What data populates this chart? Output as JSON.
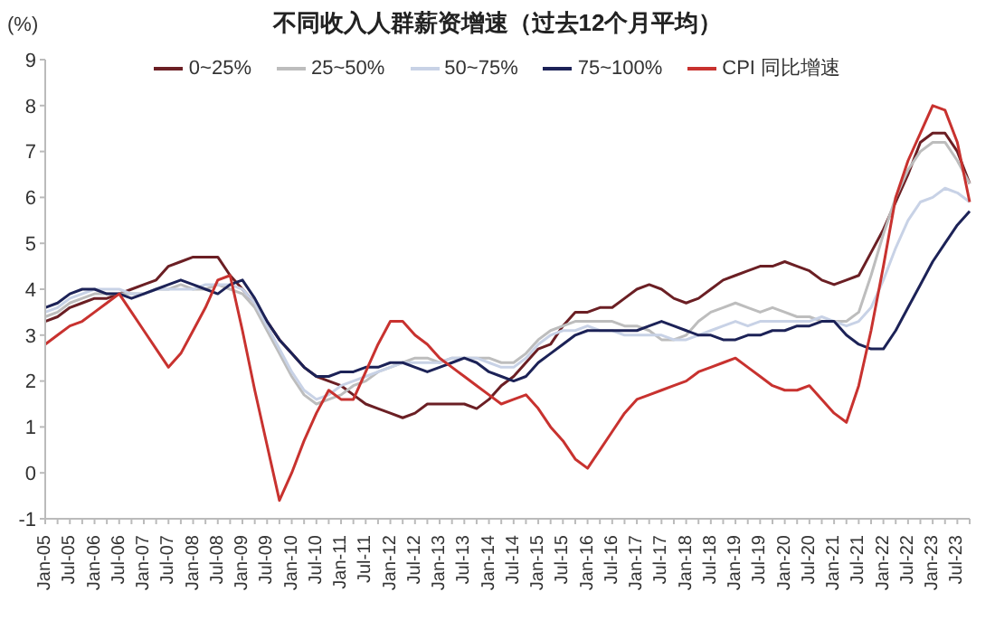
{
  "chart_data": {
    "type": "line",
    "title": "不同收入人群薪资增速（过去12个月平均）",
    "ylabel": "(%)",
    "categories": [
      "Jan-05",
      null,
      "Jul-05",
      null,
      "Jan-06",
      null,
      "Jul-06",
      null,
      "Jan-07",
      null,
      "Jul-07",
      null,
      "Jan-08",
      null,
      "Jul-08",
      null,
      "Jan-09",
      null,
      "Jul-09",
      null,
      "Jan-10",
      null,
      "Jul-10",
      null,
      "Jan-11",
      null,
      "Jul-11",
      null,
      "Jan-12",
      null,
      "Jul-12",
      null,
      "Jan-13",
      null,
      "Jul-13",
      null,
      "Jan-14",
      null,
      "Jul-14",
      null,
      "Jan-15",
      null,
      "Jul-15",
      null,
      "Jan-16",
      null,
      "Jul-16",
      null,
      "Jan-17",
      null,
      "Jul-17",
      null,
      "Jan-18",
      null,
      "Jul-18",
      null,
      "Jan-19",
      null,
      "Jul-19",
      null,
      "Jan-20",
      null,
      "Jul-20",
      null,
      "Jan-21",
      null,
      "Jul-21",
      null,
      "Jan-22",
      null,
      "Jul-22",
      null,
      "Jan-23",
      null,
      "Jul-23",
      null
    ],
    "series": [
      {
        "name": "0~25%",
        "color": "#6b1f24",
        "values": [
          3.3,
          3.4,
          3.6,
          3.7,
          3.8,
          3.8,
          3.9,
          4.0,
          4.1,
          4.2,
          4.5,
          4.6,
          4.7,
          4.7,
          4.7,
          4.3,
          4.0,
          3.7,
          3.3,
          2.9,
          2.6,
          2.3,
          2.1,
          2.0,
          1.9,
          1.7,
          1.5,
          1.4,
          1.3,
          1.2,
          1.3,
          1.5,
          1.5,
          1.5,
          1.5,
          1.4,
          1.6,
          1.9,
          2.1,
          2.4,
          2.7,
          2.8,
          3.2,
          3.5,
          3.5,
          3.6,
          3.6,
          3.8,
          4.0,
          4.1,
          4.0,
          3.8,
          3.7,
          3.8,
          4.0,
          4.2,
          4.3,
          4.4,
          4.5,
          4.5,
          4.6,
          4.5,
          4.4,
          4.2,
          4.1,
          4.2,
          4.3,
          4.8,
          5.3,
          5.9,
          6.5,
          7.2,
          7.4,
          7.4,
          7.0,
          6.3
        ]
      },
      {
        "name": "25~50%",
        "color": "#bdbdbd",
        "values": [
          3.4,
          3.5,
          3.7,
          3.8,
          3.9,
          3.9,
          3.9,
          3.9,
          3.9,
          4.0,
          4.0,
          4.1,
          4.0,
          4.0,
          4.1,
          4.0,
          3.9,
          3.6,
          3.1,
          2.6,
          2.1,
          1.7,
          1.5,
          1.6,
          1.7,
          1.9,
          2.0,
          2.2,
          2.3,
          2.4,
          2.5,
          2.5,
          2.4,
          2.5,
          2.5,
          2.5,
          2.5,
          2.4,
          2.4,
          2.6,
          2.9,
          3.1,
          3.2,
          3.3,
          3.3,
          3.3,
          3.3,
          3.2,
          3.2,
          3.1,
          2.9,
          2.9,
          3.0,
          3.3,
          3.5,
          3.6,
          3.7,
          3.6,
          3.5,
          3.6,
          3.5,
          3.4,
          3.4,
          3.3,
          3.3,
          3.3,
          3.5,
          4.3,
          5.2,
          6.0,
          6.6,
          7.0,
          7.2,
          7.2,
          6.8,
          6.3
        ]
      },
      {
        "name": "50~75%",
        "color": "#c8d2e6",
        "values": [
          3.5,
          3.6,
          3.8,
          3.9,
          4.0,
          4.0,
          4.0,
          3.9,
          3.9,
          4.0,
          4.0,
          4.0,
          4.0,
          4.1,
          4.1,
          4.1,
          4.0,
          3.7,
          3.2,
          2.7,
          2.2,
          1.8,
          1.6,
          1.7,
          1.9,
          2.0,
          2.1,
          2.2,
          2.3,
          2.4,
          2.4,
          2.4,
          2.4,
          2.5,
          2.5,
          2.5,
          2.4,
          2.3,
          2.3,
          2.5,
          2.8,
          3.0,
          3.1,
          3.1,
          3.2,
          3.1,
          3.1,
          3.0,
          3.0,
          3.0,
          3.0,
          2.9,
          2.9,
          3.0,
          3.1,
          3.2,
          3.3,
          3.2,
          3.3,
          3.3,
          3.3,
          3.3,
          3.3,
          3.4,
          3.3,
          3.2,
          3.3,
          3.6,
          4.2,
          4.9,
          5.5,
          5.9,
          6.0,
          6.2,
          6.1,
          5.9
        ]
      },
      {
        "name": "75~100%",
        "color": "#1c2257",
        "values": [
          3.6,
          3.7,
          3.9,
          4.0,
          4.0,
          3.9,
          3.9,
          3.8,
          3.9,
          4.0,
          4.1,
          4.2,
          4.1,
          4.0,
          3.9,
          4.1,
          4.2,
          3.8,
          3.3,
          2.9,
          2.6,
          2.3,
          2.1,
          2.1,
          2.2,
          2.2,
          2.3,
          2.3,
          2.4,
          2.4,
          2.3,
          2.2,
          2.3,
          2.4,
          2.5,
          2.4,
          2.2,
          2.1,
          2.0,
          2.1,
          2.4,
          2.6,
          2.8,
          3.0,
          3.1,
          3.1,
          3.1,
          3.1,
          3.1,
          3.2,
          3.3,
          3.2,
          3.1,
          3.0,
          3.0,
          2.9,
          2.9,
          3.0,
          3.0,
          3.1,
          3.1,
          3.2,
          3.2,
          3.3,
          3.3,
          3.0,
          2.8,
          2.7,
          2.7,
          3.1,
          3.6,
          4.1,
          4.6,
          5.0,
          5.4,
          5.7
        ]
      },
      {
        "name": "CPI 同比增速",
        "color": "#c8322f",
        "values": [
          2.8,
          3.0,
          3.2,
          3.3,
          3.5,
          3.7,
          3.9,
          3.5,
          3.1,
          2.7,
          2.3,
          2.6,
          3.1,
          3.6,
          4.2,
          4.3,
          3.1,
          1.8,
          0.6,
          -0.6,
          0.0,
          0.7,
          1.3,
          1.8,
          1.6,
          1.6,
          2.2,
          2.8,
          3.3,
          3.3,
          3.0,
          2.8,
          2.5,
          2.3,
          2.1,
          1.9,
          1.7,
          1.5,
          1.6,
          1.7,
          1.4,
          1.0,
          0.7,
          0.3,
          0.1,
          0.5,
          0.9,
          1.3,
          1.6,
          1.7,
          1.8,
          1.9,
          2.0,
          2.2,
          2.3,
          2.4,
          2.5,
          2.3,
          2.1,
          1.9,
          1.8,
          1.8,
          1.9,
          1.6,
          1.3,
          1.1,
          1.9,
          3.1,
          4.5,
          6.0,
          6.8,
          7.4,
          8.0,
          7.9,
          7.2,
          5.9
        ]
      }
    ],
    "ylim": [
      -1,
      9
    ],
    "yticks": [
      -1,
      0,
      1,
      2,
      3,
      4,
      5,
      6,
      7,
      8,
      9
    ],
    "legend": "top",
    "marker": "none",
    "line_style": "solid"
  }
}
